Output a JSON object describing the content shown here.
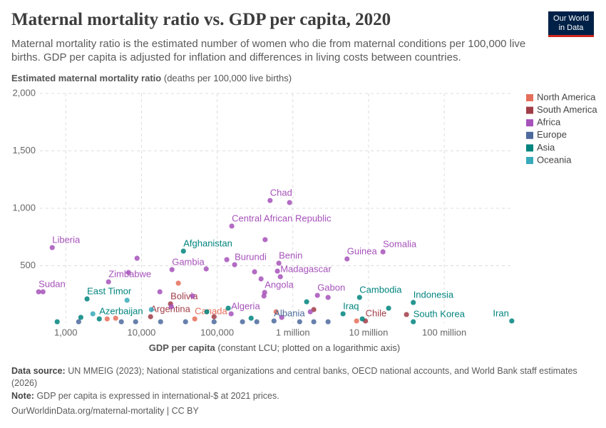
{
  "header": {
    "title": "Maternal mortality ratio vs. GDP per capita, 2020",
    "subtitle": "Maternal mortality ratio is the estimated number of women who die from maternal conditions per 100,000 live births. GDP per capita is adjusted for inflation and differences in living costs between countries.",
    "logo": [
      "Our World",
      "in Data"
    ]
  },
  "chart_data": {
    "type": "scatter",
    "y_label": "Estimated maternal mortality ratio",
    "y_label_unit": "(deaths per 100,000 live births)",
    "x_label": "GDP per capita",
    "x_label_unit": "(constant LCU; plotted on a logarithmic axis)",
    "xscale": "log",
    "grid": true,
    "legend": "right",
    "xlim": [
      400,
      800000000
    ],
    "xticks": [
      {
        "value": 1000,
        "label": "1,000"
      },
      {
        "value": 10000,
        "label": "10,000"
      },
      {
        "value": 100000,
        "label": "100,000"
      },
      {
        "value": 1000000,
        "label": "1 million"
      },
      {
        "value": 10000000,
        "label": "10 million"
      },
      {
        "value": 100000000,
        "label": "100 million"
      }
    ],
    "ylim": [
      0,
      2000
    ],
    "yticks": [
      500,
      {
        "value": 1000,
        "label": "1,000"
      },
      {
        "value": 1500,
        "label": "1,500"
      },
      {
        "value": 2000,
        "label": "2,000"
      }
    ],
    "series": [
      {
        "name": "North America",
        "color": "#e56e5a",
        "x": [
          30700,
          4560,
          600000,
          6950000,
          3520,
          50600
        ],
        "values": [
          348,
          43,
          99,
          19,
          37,
          37
        ],
        "labels": [
          null,
          null,
          null,
          null,
          null,
          "Canada"
        ]
      },
      {
        "name": "South America",
        "color": "#a13d48",
        "x": [
          24200,
          13200,
          9100000,
          1890000,
          31700000,
          91000
        ],
        "values": [
          168,
          56,
          19,
          118,
          75,
          56
        ],
        "labels": [
          "Bolivia",
          "Argentina",
          "Chile",
          null,
          null,
          null
        ]
      },
      {
        "name": "Africa",
        "color": "#a652ba",
        "x": [
          500000,
          905000,
          156000,
          662,
          15500000,
          5200000,
          653000,
          170000,
          134000,
          25300,
          683000,
          312000,
          625000,
          380000,
          3670,
          438,
          500,
          424000,
          2110000,
          153000,
          430000,
          8740,
          6740,
          71600,
          17500,
          47400,
          24800,
          2920000,
          1700000,
          713000,
          415000
        ],
        "values": [
          1068,
          1050,
          845,
          658,
          621,
          559,
          522,
          509,
          553,
          466,
          404,
          447,
          453,
          385,
          360,
          273,
          273,
          267,
          242,
          81,
          727,
          565,
          441,
          472,
          273,
          236,
          143,
          224,
          99,
          50,
          236
        ],
        "labels": [
          "Chad",
          null,
          "Central African Republic",
          "Liberia",
          "Somalia",
          "Guinea",
          "Benin",
          "Burundi",
          null,
          "Gambia",
          "Madagascar",
          null,
          null,
          null,
          "Zimbabwe",
          "Sudan",
          null,
          "Angola",
          "Gabon",
          "Algeria",
          null,
          null,
          null,
          null,
          null,
          null,
          null,
          null,
          null,
          null,
          null
        ]
      },
      {
        "name": "Europe",
        "color": "#4c6a9c",
        "x": [
          1480,
          5420,
          8370,
          17900,
          38200,
          91000,
          216000,
          334000,
          1230000,
          1890000,
          2920000,
          563000
        ],
        "values": [
          12,
          12,
          12,
          12,
          12,
          12,
          12,
          12,
          12,
          12,
          12,
          19
        ],
        "labels": [
          null,
          null,
          null,
          null,
          null,
          null,
          null,
          null,
          null,
          null,
          null,
          "Albania"
        ]
      },
      {
        "name": "Asia",
        "color": "#00847e",
        "x": [
          35800,
          7600000,
          1910,
          39000000,
          2770,
          4600000,
          39000000,
          780000000,
          770,
          1580,
          73000,
          140000,
          281000,
          1520000,
          8260000,
          18400000
        ],
        "values": [
          627,
          224,
          211,
          180,
          37,
          81,
          12,
          19,
          12,
          50,
          99,
          130,
          43,
          186,
          37,
          130
        ],
        "labels": [
          "Afghanistan",
          "Cambodia",
          "East Timor",
          "Indonesia",
          "Azerbaijan",
          "Iraq",
          "South Korea",
          "Iran",
          null,
          null,
          null,
          null,
          null,
          null,
          null,
          null
        ]
      },
      {
        "name": "Oceania",
        "color": "#38aaba",
        "x": [
          2280,
          6450,
          13500
        ],
        "values": [
          81,
          199,
          118
        ],
        "labels": [
          null,
          null,
          null
        ]
      }
    ]
  },
  "footer": {
    "source_label": "Data source:",
    "source": "UN MMEIG (2023); National statistical organizations and central banks, OECD national accounts, and World Bank staff estimates (2026)",
    "note_label": "Note:",
    "note": "GDP per capita is expressed in international-$ at 2021 prices.",
    "url": "OurWorldinData.org/maternal-mortality | CC BY"
  }
}
